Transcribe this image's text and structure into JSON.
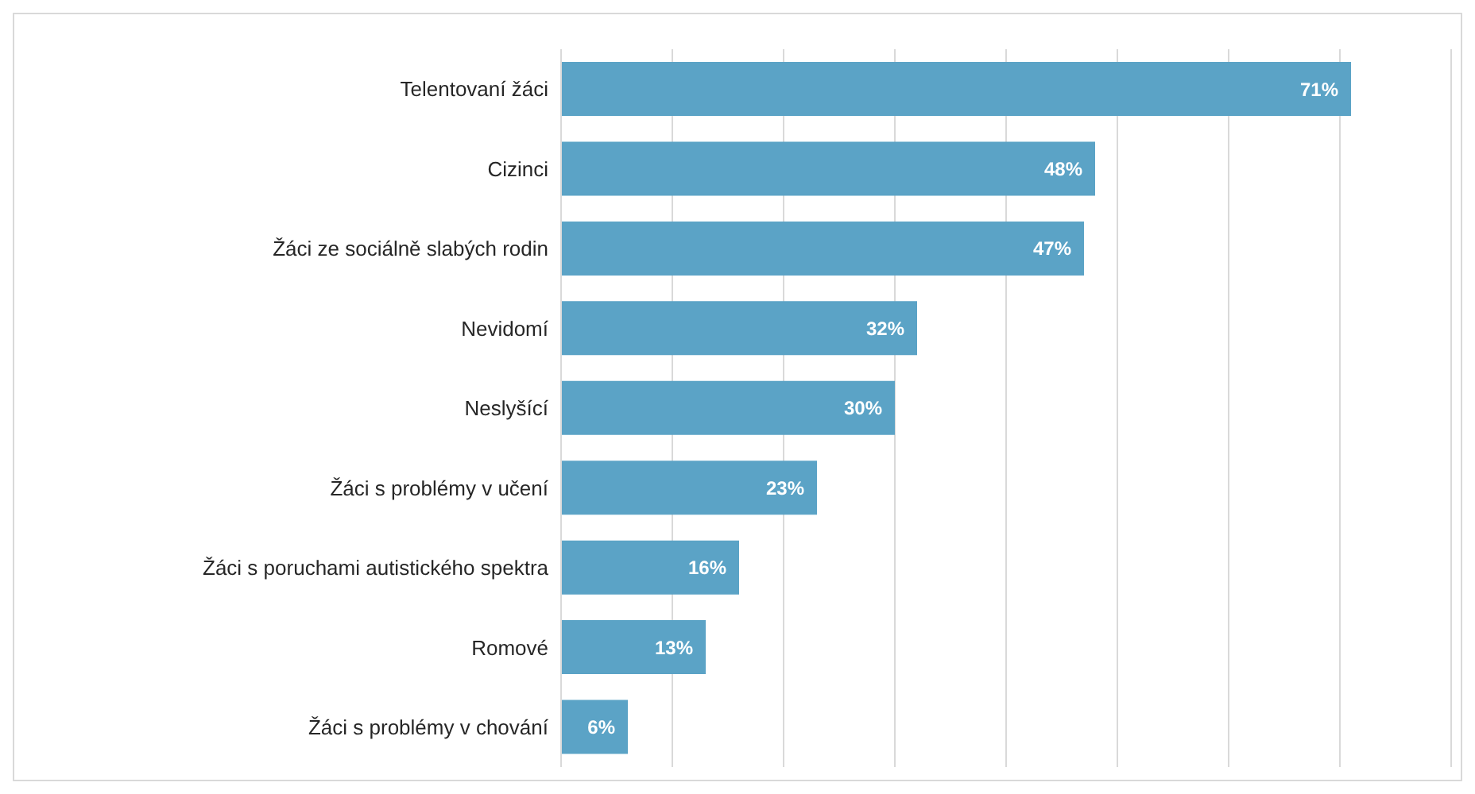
{
  "chart_data": {
    "type": "bar",
    "orientation": "horizontal",
    "categories": [
      "Telentovaní žáci",
      "Cizinci",
      "Žáci ze sociálně slabých rodin",
      "Nevidomí",
      "Neslyšící",
      "Žáci s problémy v učení",
      "Žáci s poruchami autistického spektra",
      "Romové",
      "Žáci s problémy v chování"
    ],
    "values": [
      71,
      48,
      47,
      32,
      30,
      23,
      16,
      13,
      6
    ],
    "value_labels": [
      "71%",
      "48%",
      "47%",
      "32%",
      "30%",
      "23%",
      "16%",
      "13%",
      "6%"
    ],
    "color": "#5ba3c6",
    "xlim": [
      0,
      80
    ],
    "grid": "x",
    "tick_labels": "y"
  }
}
